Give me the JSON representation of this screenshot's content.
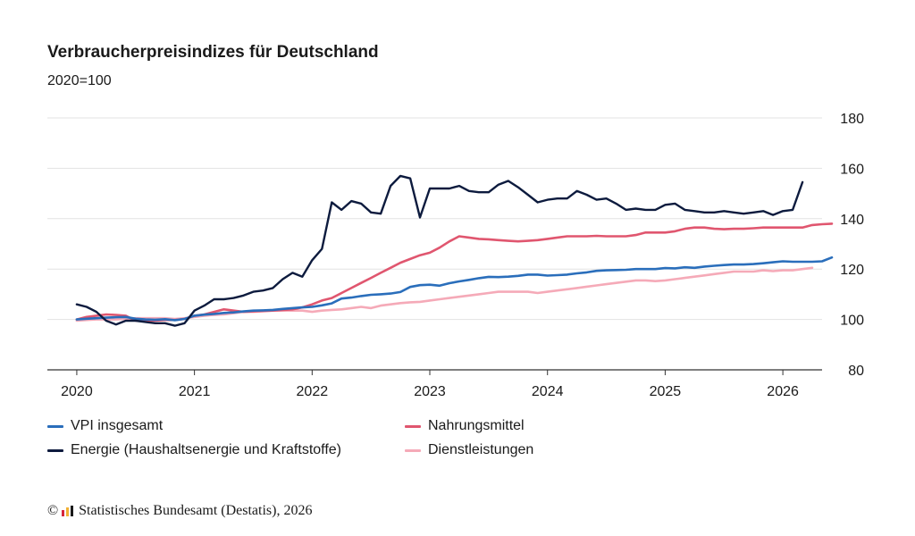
{
  "header": {
    "title": "Verbraucherpreisindizes für Deutschland",
    "subtitle": "2020=100"
  },
  "legend": {
    "items": [
      {
        "label": "VPI insgesamt",
        "color": "#2a6ebb"
      },
      {
        "label": "Nahrungsmittel",
        "color": "#e0566f"
      },
      {
        "label": "Energie (Haushaltsenergie und Kraftstoffe)",
        "color": "#0d1b3e"
      },
      {
        "label": "Dienstleistungen",
        "color": "#f5aab8"
      }
    ]
  },
  "footer": {
    "copyright_symbol": "©",
    "source_text": "Statistisches Bundesamt (Destatis), 2026",
    "logo_colors": [
      "#d7263d",
      "#f2b134",
      "#1a1a1a"
    ]
  },
  "chart_data": {
    "type": "line",
    "title": "Verbraucherpreisindizes für Deutschland",
    "subtitle": "2020=100",
    "x_start": "2020-01",
    "x_labels": [
      "2020",
      "2021",
      "2022",
      "2023",
      "2024",
      "2025",
      "2026"
    ],
    "xlim": [
      "2019-10",
      "2026-05"
    ],
    "ylim": [
      80,
      180
    ],
    "y_ticks": [
      80,
      100,
      120,
      140,
      160,
      180
    ],
    "y_axis_position": "right",
    "grid": true,
    "legend_position": "bottom",
    "series": [
      {
        "name": "VPI insgesamt",
        "color": "#2a6ebb",
        "values": [
          100.0,
          100.3,
          100.5,
          100.7,
          100.9,
          101.0,
          100.3,
          100.0,
          99.9,
          100.1,
          99.7,
          100.2,
          101.5,
          101.9,
          102.2,
          102.6,
          102.8,
          103.2,
          103.5,
          103.6,
          103.8,
          104.2,
          104.5,
          104.8,
          105.0,
          105.6,
          106.4,
          108.3,
          108.7,
          109.3,
          109.8,
          110.0,
          110.3,
          110.9,
          112.9,
          113.6,
          113.8,
          113.4,
          114.4,
          115.1,
          115.7,
          116.4,
          116.9,
          116.8,
          117.0,
          117.3,
          117.8,
          117.8,
          117.4,
          117.6,
          117.8,
          118.3,
          118.7,
          119.3,
          119.5,
          119.6,
          119.7,
          120.0,
          120.0,
          120.0,
          120.4,
          120.3,
          120.7,
          120.5,
          121.0,
          121.3,
          121.6,
          121.8,
          121.8,
          122.0,
          122.3,
          122.7,
          123.1,
          122.9,
          122.9,
          122.9,
          123.1,
          124.6
        ]
      },
      {
        "name": "Nahrungsmittel",
        "color": "#e0566f",
        "values": [
          100.0,
          101.0,
          101.5,
          102.0,
          101.8,
          101.5,
          99.5,
          99.5,
          99.5,
          99.8,
          99.8,
          100.2,
          101.5,
          102.0,
          103.0,
          104.0,
          103.5,
          103.0,
          103.2,
          103.4,
          103.5,
          103.8,
          104.0,
          104.8,
          106.0,
          107.5,
          108.5,
          110.5,
          112.5,
          114.5,
          116.5,
          118.5,
          120.5,
          122.5,
          124.0,
          125.5,
          126.5,
          128.5,
          131.0,
          133.0,
          132.5,
          132.0,
          131.8,
          131.5,
          131.2,
          131.0,
          131.2,
          131.5,
          132.0,
          132.5,
          133.0,
          133.0,
          133.0,
          133.2,
          133.0,
          133.0,
          133.0,
          133.5,
          134.5,
          134.5,
          134.5,
          135.0,
          136.0,
          136.5,
          136.5,
          136.0,
          135.8,
          136.0,
          136.0,
          136.2,
          136.5,
          136.5,
          136.5,
          136.5,
          136.5,
          137.5,
          137.8,
          138.0
        ]
      },
      {
        "name": "Energie (Haushaltsenergie und Kraftstoffe)",
        "color": "#0d1b3e",
        "values": [
          106.0,
          105.0,
          103.0,
          99.5,
          98.0,
          99.5,
          99.5,
          99.0,
          98.5,
          98.5,
          97.5,
          98.5,
          103.5,
          105.5,
          108.0,
          108.0,
          108.5,
          109.5,
          111.0,
          111.5,
          112.5,
          116.0,
          118.5,
          117.0,
          123.5,
          128.0,
          146.5,
          143.5,
          147.0,
          146.0,
          142.5,
          142.0,
          153.0,
          157.0,
          156.0,
          140.5,
          152.0,
          152.0,
          152.0,
          153.0,
          151.0,
          150.5,
          150.5,
          153.5,
          155.0,
          152.5,
          149.5,
          146.5,
          147.5,
          148.0,
          148.0,
          151.0,
          149.5,
          147.5,
          148.0,
          146.0,
          143.5,
          144.0,
          143.5,
          143.5,
          145.5,
          146.0,
          143.5,
          143.0,
          142.5,
          142.5,
          143.0,
          142.5,
          142.0,
          142.5,
          143.0,
          141.5,
          143.0,
          143.5,
          154.5
        ]
      },
      {
        "name": "Dienstleistungen",
        "color": "#f5aab8",
        "values": [
          99.5,
          99.8,
          100.0,
          100.0,
          100.0,
          100.2,
          100.5,
          100.5,
          100.5,
          100.5,
          100.2,
          100.5,
          101.0,
          101.5,
          101.8,
          102.0,
          102.5,
          103.0,
          103.0,
          103.2,
          103.5,
          103.5,
          103.5,
          103.5,
          103.0,
          103.5,
          103.8,
          104.0,
          104.5,
          105.0,
          104.5,
          105.5,
          106.0,
          106.5,
          106.8,
          107.0,
          107.5,
          108.0,
          108.5,
          109.0,
          109.5,
          110.0,
          110.5,
          111.0,
          111.0,
          111.0,
          111.0,
          110.5,
          111.0,
          111.5,
          112.0,
          112.5,
          113.0,
          113.5,
          114.0,
          114.5,
          115.0,
          115.5,
          115.5,
          115.2,
          115.5,
          116.0,
          116.5,
          117.0,
          117.5,
          118.0,
          118.5,
          119.0,
          119.0,
          119.0,
          119.5,
          119.2,
          119.5,
          119.5,
          120.0,
          120.5
        ]
      }
    ]
  }
}
